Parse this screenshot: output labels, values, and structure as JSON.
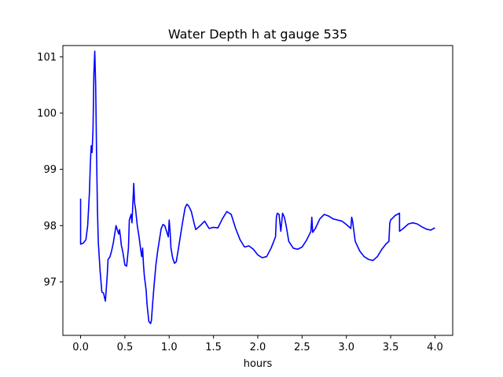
{
  "chart_data": {
    "type": "line",
    "title": "Water Depth h at gauge 535",
    "xlabel": "hours",
    "ylabel": "",
    "xlim": [
      -0.2,
      4.2
    ],
    "ylim": [
      96.05,
      101.2
    ],
    "xticks": [
      0.0,
      0.5,
      1.0,
      1.5,
      2.0,
      2.5,
      3.0,
      3.5,
      4.0
    ],
    "xtick_labels": [
      "0.0",
      "0.5",
      "1.0",
      "1.5",
      "2.0",
      "2.5",
      "3.0",
      "3.5",
      "4.0"
    ],
    "yticks": [
      97,
      98,
      99,
      100,
      101
    ],
    "ytick_labels": [
      "97",
      "98",
      "99",
      "100",
      "101"
    ],
    "grid": false,
    "series": [
      {
        "color": "#0000ff",
        "x": [
          0.0,
          0.0,
          0.03,
          0.06,
          0.08,
          0.1,
          0.11,
          0.12,
          0.13,
          0.14,
          0.15,
          0.16,
          0.17,
          0.18,
          0.19,
          0.2,
          0.22,
          0.24,
          0.26,
          0.27,
          0.28,
          0.3,
          0.31,
          0.33,
          0.35,
          0.37,
          0.4,
          0.42,
          0.43,
          0.44,
          0.45,
          0.46,
          0.47,
          0.48,
          0.5,
          0.52,
          0.54,
          0.55,
          0.57,
          0.58,
          0.59,
          0.6,
          0.61,
          0.62,
          0.63,
          0.64,
          0.66,
          0.68,
          0.69,
          0.7,
          0.71,
          0.72,
          0.74,
          0.75,
          0.77,
          0.79,
          0.8,
          0.81,
          0.83,
          0.85,
          0.87,
          0.89,
          0.91,
          0.93,
          0.95,
          0.97,
          0.99,
          1.0,
          1.01,
          1.02,
          1.04,
          1.06,
          1.08,
          1.1,
          1.12,
          1.15,
          1.18,
          1.2,
          1.22,
          1.25,
          1.28,
          1.3,
          1.35,
          1.4,
          1.45,
          1.5,
          1.55,
          1.6,
          1.65,
          1.7,
          1.75,
          1.8,
          1.85,
          1.9,
          1.95,
          2.0,
          2.05,
          2.1,
          2.15,
          2.2,
          2.21,
          2.22,
          2.24,
          2.26,
          2.28,
          2.3,
          2.32,
          2.35,
          2.4,
          2.45,
          2.5,
          2.55,
          2.6,
          2.61,
          2.62,
          2.65,
          2.7,
          2.75,
          2.8,
          2.85,
          2.9,
          2.95,
          3.0,
          3.05,
          3.06,
          3.07,
          3.1,
          3.15,
          3.2,
          3.25,
          3.3,
          3.35,
          3.4,
          3.45,
          3.48,
          3.49,
          3.5,
          3.55,
          3.6,
          3.6,
          3.65,
          3.7,
          3.75,
          3.8,
          3.85,
          3.9,
          3.95,
          4.0
        ],
        "y": [
          98.48,
          97.67,
          97.69,
          97.75,
          98.0,
          98.6,
          99.1,
          99.42,
          99.3,
          99.7,
          100.7,
          101.1,
          100.5,
          99.3,
          98.3,
          97.7,
          97.2,
          96.82,
          96.8,
          96.72,
          96.66,
          97.1,
          97.4,
          97.44,
          97.55,
          97.7,
          98.0,
          97.9,
          97.85,
          97.93,
          97.8,
          97.65,
          97.58,
          97.5,
          97.3,
          97.28,
          97.6,
          98.1,
          98.2,
          98.05,
          98.4,
          98.75,
          98.4,
          98.3,
          98.15,
          98.0,
          97.8,
          97.55,
          97.45,
          97.6,
          97.3,
          97.1,
          96.85,
          96.6,
          96.3,
          96.26,
          96.32,
          96.55,
          96.95,
          97.3,
          97.55,
          97.75,
          97.95,
          98.02,
          98.0,
          97.9,
          97.8,
          98.1,
          97.9,
          97.6,
          97.42,
          97.33,
          97.36,
          97.55,
          97.75,
          98.05,
          98.32,
          98.38,
          98.35,
          98.25,
          98.05,
          97.93,
          98.0,
          98.08,
          97.95,
          97.97,
          97.96,
          98.12,
          98.25,
          98.2,
          97.95,
          97.75,
          97.62,
          97.64,
          97.58,
          97.48,
          97.43,
          97.45,
          97.6,
          97.8,
          98.15,
          98.22,
          98.2,
          97.9,
          98.22,
          98.15,
          98.0,
          97.72,
          97.6,
          97.58,
          97.62,
          97.74,
          97.9,
          98.15,
          97.88,
          97.95,
          98.12,
          98.2,
          98.17,
          98.12,
          98.1,
          98.08,
          98.02,
          97.95,
          98.15,
          98.08,
          97.72,
          97.55,
          97.45,
          97.4,
          97.38,
          97.45,
          97.58,
          97.68,
          97.72,
          98.05,
          98.1,
          98.18,
          98.22,
          97.9,
          97.96,
          98.03,
          98.05,
          98.03,
          97.98,
          97.94,
          97.92,
          97.96
        ]
      }
    ]
  }
}
